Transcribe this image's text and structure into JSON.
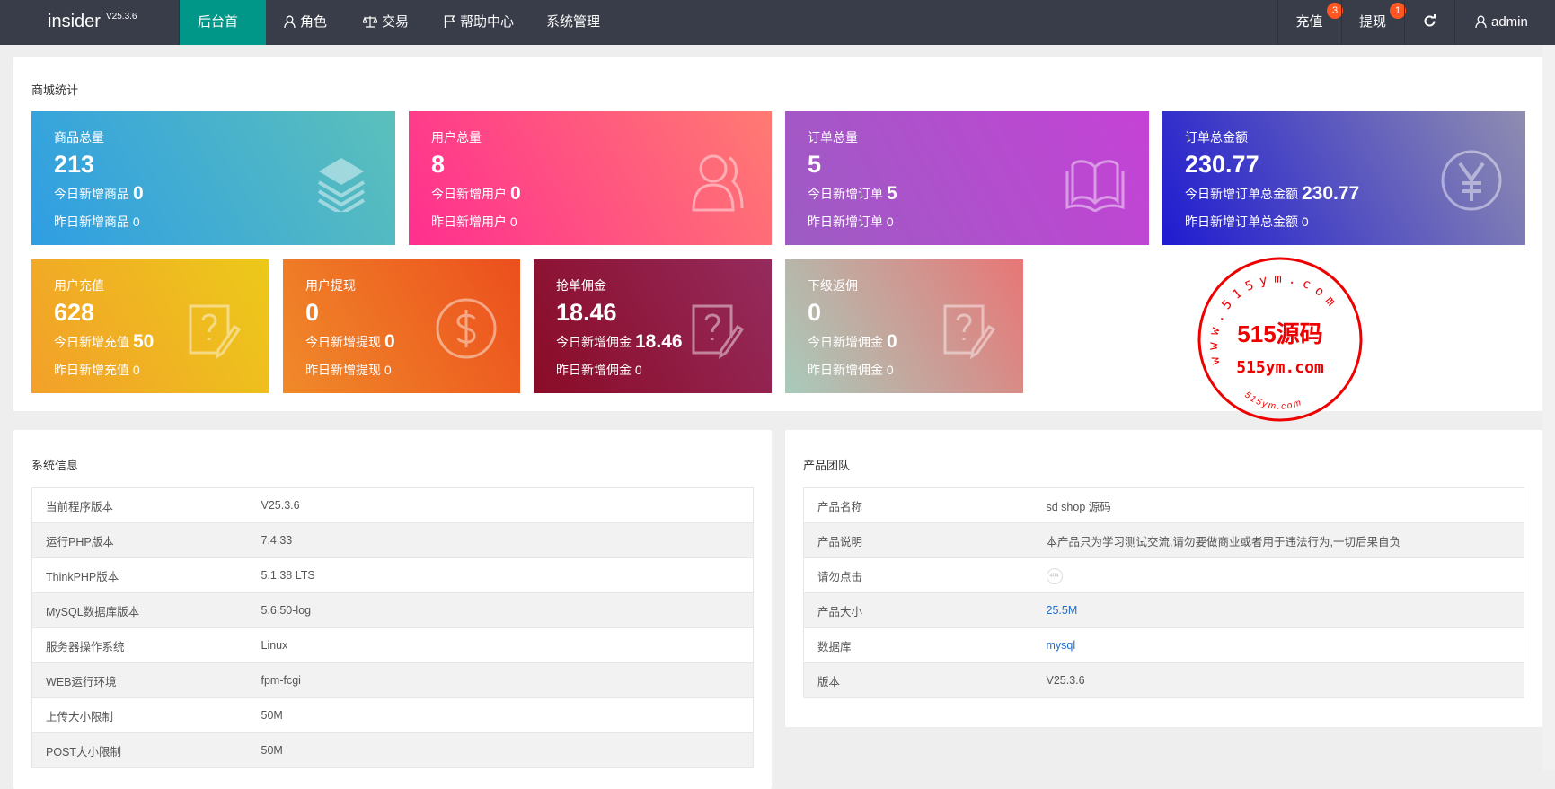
{
  "nav": {
    "brand": "insider",
    "version": "V25.3.6",
    "items": [
      {
        "label": "后台首页",
        "icon": "",
        "active": true
      },
      {
        "label": "角色",
        "icon": "user-icon"
      },
      {
        "label": "交易",
        "icon": "scale-icon"
      },
      {
        "label": "帮助中心",
        "icon": "flag-icon"
      },
      {
        "label": "系统管理",
        "icon": ""
      }
    ],
    "right": {
      "recharge": {
        "label": "充值",
        "badge": "3"
      },
      "withdraw": {
        "label": "提现",
        "badge": "1"
      },
      "refresh_icon": "refresh-icon",
      "user": "admin"
    }
  },
  "stats": {
    "title": "商城统计",
    "tiles": [
      {
        "title": "商品总量",
        "value": "213",
        "today_label": "今日新增商品",
        "today": "0",
        "yesterday_label": "昨日新增商品",
        "yesterday": "0",
        "icon": "layers-icon",
        "colors": [
          "#2f9ee3",
          "#5bc0bb"
        ]
      },
      {
        "title": "用户总量",
        "value": "8",
        "today_label": "今日新增用户",
        "today": "0",
        "yesterday_label": "昨日新增用户",
        "yesterday": "0",
        "icon": "users-icon",
        "colors": [
          "#ff2f8f",
          "#ff7a72"
        ]
      },
      {
        "title": "订单总量",
        "value": "5",
        "today_label": "今日新增订单",
        "today": "5",
        "yesterday_label": "昨日新增订单",
        "yesterday": "0",
        "icon": "book-icon",
        "colors": [
          "#9c5cc3",
          "#c542d6"
        ]
      },
      {
        "title": "订单总金额",
        "value": "230.77",
        "today_label": "今日新增订单总金额",
        "today": "230.77",
        "yesterday_label": "昨日新增订单总金额",
        "yesterday": "0",
        "icon": "yen-icon",
        "colors": [
          "#1f1bd1",
          "#8f8db0"
        ]
      },
      {
        "title": "用户充值",
        "value": "628",
        "today_label": "今日新增充值",
        "today": "50",
        "yesterday_label": "昨日新增充值",
        "yesterday": "0",
        "icon": "question-note-icon",
        "colors": [
          "#f3a02a",
          "#ecc91a"
        ]
      },
      {
        "title": "用户提现",
        "value": "0",
        "today_label": "今日新增提现",
        "today": "0",
        "yesterday_label": "昨日新增提现",
        "yesterday": "0",
        "icon": "dollar-icon",
        "colors": [
          "#f08a2a",
          "#ec4f1d"
        ]
      },
      {
        "title": "抢单佣金",
        "value": "18.46",
        "today_label": "今日新增佣金",
        "today": "18.46",
        "yesterday_label": "昨日新增佣金",
        "yesterday": "0",
        "icon": "question-note-icon",
        "colors": [
          "#8a0b26",
          "#952b5d"
        ]
      },
      {
        "title": "下级返佣",
        "value": "0",
        "today_label": "今日新增佣金",
        "today": "0",
        "yesterday_label": "昨日新增佣金",
        "yesterday": "0",
        "icon": "question-note-icon",
        "colors": [
          "#a8cbbb",
          "#e87676"
        ]
      }
    ]
  },
  "system": {
    "title": "系统信息",
    "rows": [
      [
        "当前程序版本",
        "V25.3.6"
      ],
      [
        "运行PHP版本",
        "7.4.33"
      ],
      [
        "ThinkPHP版本",
        "5.1.38 LTS"
      ],
      [
        "MySQL数据库版本",
        "5.6.50-log"
      ],
      [
        "服务器操作系统",
        "Linux"
      ],
      [
        "WEB运行环境",
        "fpm-fcgi"
      ],
      [
        "上传大小限制",
        "50M"
      ],
      [
        "POST大小限制",
        "50M"
      ]
    ]
  },
  "team": {
    "title": "产品团队",
    "rows": [
      [
        "产品名称",
        "sd shop 源码"
      ],
      [
        "产品说明",
        "本产品只为学习测试交流,请勿要做商业或者用于违法行为,一切后果自负"
      ],
      [
        "请勿点击",
        "404"
      ],
      [
        "产品大小",
        "25.5M"
      ],
      [
        "数据库",
        "mysql"
      ],
      [
        "版本",
        "V25.3.6"
      ]
    ]
  },
  "watermark": {
    "arc": "www.515ym.com",
    "main": "515源码",
    "url": "515ym.com",
    "small": "515ym.com",
    "color": "#ee0000"
  }
}
